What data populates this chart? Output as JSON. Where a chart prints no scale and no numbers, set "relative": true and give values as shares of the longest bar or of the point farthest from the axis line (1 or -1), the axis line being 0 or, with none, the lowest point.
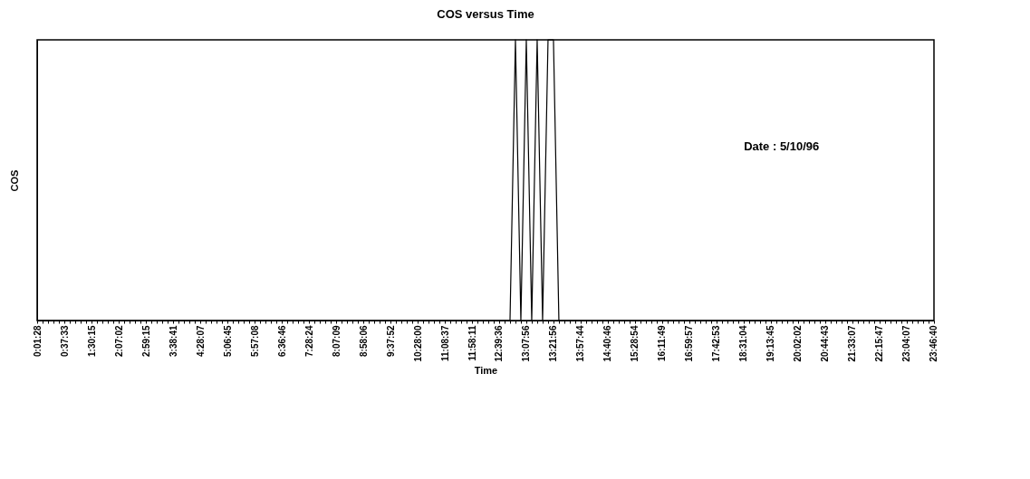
{
  "chart_data": {
    "type": "line",
    "title": "COS versus Time",
    "xlabel": "Time",
    "ylabel": "COS",
    "relative": true,
    "grid": false,
    "color": "#000000",
    "annotations": [
      "Date : 5/10/96"
    ],
    "categories": [
      "0:01:28",
      null,
      null,
      null,
      null,
      "0:37:33",
      null,
      null,
      null,
      null,
      "1:30:15",
      null,
      null,
      null,
      null,
      "2:07:02",
      null,
      null,
      null,
      null,
      "2:59:15",
      null,
      null,
      null,
      null,
      "3:38:41",
      null,
      null,
      null,
      null,
      "4:28:07",
      null,
      null,
      null,
      null,
      "5:06:45",
      null,
      null,
      null,
      null,
      "5:57:08",
      null,
      null,
      null,
      null,
      "6:36:46",
      null,
      null,
      null,
      null,
      "7:28:24",
      null,
      null,
      null,
      null,
      "8:07:09",
      null,
      null,
      null,
      null,
      "8:58:06",
      null,
      null,
      null,
      null,
      "9:37:52",
      null,
      null,
      null,
      null,
      "10:28:00",
      null,
      null,
      null,
      null,
      "11:08:37",
      null,
      null,
      null,
      null,
      "11:58:11",
      null,
      null,
      null,
      null,
      "12:39:36",
      null,
      null,
      null,
      null,
      "13:07:56",
      null,
      null,
      null,
      null,
      "13:21:56",
      null,
      null,
      null,
      null,
      "13:57:44",
      null,
      null,
      null,
      null,
      "14:40:46",
      null,
      null,
      null,
      null,
      "15:28:54",
      null,
      null,
      null,
      null,
      "16:11:49",
      null,
      null,
      null,
      null,
      "16:59:57",
      null,
      null,
      null,
      null,
      "17:42:53",
      null,
      null,
      null,
      null,
      "18:31:04",
      null,
      null,
      null,
      null,
      "19:13:45",
      null,
      null,
      null,
      null,
      "20:02:02",
      null,
      null,
      null,
      null,
      "20:44:43",
      null,
      null,
      null,
      null,
      "21:33:07",
      null,
      null,
      null,
      null,
      "22:15:47",
      null,
      null,
      null,
      null,
      "23:04:07",
      null,
      null,
      null,
      null,
      "23:46:40"
    ],
    "values": [
      0,
      0,
      0,
      0,
      0,
      0,
      0,
      0,
      0,
      0,
      0,
      0,
      0,
      0,
      0,
      0,
      0,
      0,
      0,
      0,
      0,
      0,
      0,
      0,
      0,
      0,
      0,
      0,
      0,
      0,
      0,
      0,
      0,
      0,
      0,
      0,
      0,
      0,
      0,
      0,
      0,
      0,
      0,
      0,
      0,
      0,
      0,
      0,
      0,
      0,
      0,
      0,
      0,
      0,
      0,
      0,
      0,
      0,
      0,
      0,
      0,
      0,
      0,
      0,
      0,
      0,
      0,
      0,
      0,
      0,
      0,
      0,
      0,
      0,
      0,
      0,
      0,
      0,
      0,
      0,
      0,
      0,
      0,
      0,
      0,
      0,
      0,
      0,
      1,
      0,
      1,
      0,
      1,
      0,
      1,
      1,
      0,
      0,
      0,
      0,
      0,
      0,
      0,
      0,
      0,
      0,
      0,
      0,
      0,
      0,
      0,
      0,
      0,
      0,
      0,
      0,
      0,
      0,
      0,
      0,
      0,
      0,
      0,
      0,
      0,
      0,
      0,
      0,
      0,
      0,
      0,
      0,
      0,
      0,
      0,
      0,
      0,
      0,
      0,
      0,
      0,
      0,
      0,
      0,
      0,
      0,
      0,
      0,
      0,
      0,
      0,
      0,
      0,
      0,
      0,
      0,
      0,
      0,
      0,
      0,
      0,
      0,
      0,
      0,
      0,
      0
    ]
  }
}
